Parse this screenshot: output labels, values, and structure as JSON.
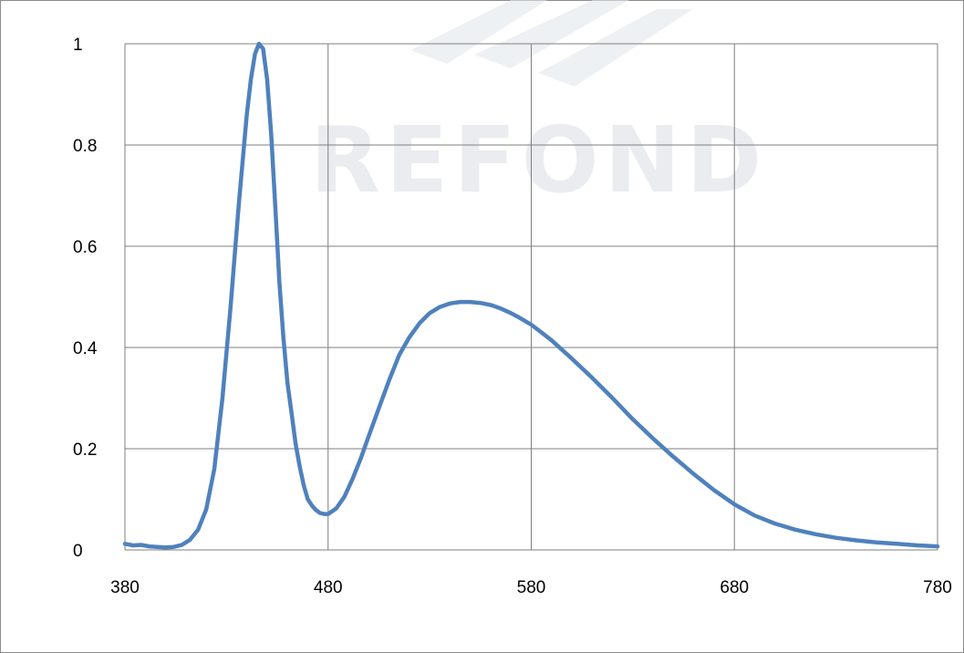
{
  "chart_data": {
    "type": "line",
    "title": "",
    "xlabel": "",
    "ylabel": "",
    "xlim": [
      380,
      780
    ],
    "ylim": [
      0,
      1
    ],
    "x_ticks": [
      "380",
      "480",
      "580",
      "680",
      "780"
    ],
    "y_ticks": [
      "0",
      "0.2",
      "0.4",
      "0.6",
      "0.8",
      "1"
    ],
    "grid": true,
    "legend": "none",
    "series": [
      {
        "color": "#4f81bd",
        "x": [
          380,
          384,
          388,
          392,
          396,
          400,
          404,
          408,
          412,
          416,
          420,
          424,
          428,
          432,
          436,
          440,
          442,
          444,
          446,
          448,
          450,
          452,
          454,
          456,
          458,
          460,
          462,
          464,
          466,
          468,
          470,
          472,
          474,
          476,
          478,
          480,
          484,
          488,
          492,
          496,
          500,
          505,
          510,
          515,
          520,
          525,
          530,
          535,
          540,
          545,
          550,
          555,
          560,
          565,
          570,
          575,
          580,
          585,
          590,
          595,
          600,
          610,
          620,
          630,
          640,
          650,
          660,
          670,
          680,
          690,
          700,
          710,
          720,
          730,
          740,
          750,
          760,
          770,
          780
        ],
        "y": [
          0.012,
          0.009,
          0.01,
          0.007,
          0.006,
          0.005,
          0.006,
          0.01,
          0.02,
          0.04,
          0.08,
          0.16,
          0.3,
          0.48,
          0.68,
          0.86,
          0.93,
          0.98,
          1.0,
          0.99,
          0.93,
          0.82,
          0.68,
          0.53,
          0.42,
          0.33,
          0.27,
          0.21,
          0.165,
          0.128,
          0.1,
          0.088,
          0.079,
          0.073,
          0.071,
          0.071,
          0.082,
          0.105,
          0.14,
          0.18,
          0.225,
          0.28,
          0.335,
          0.385,
          0.42,
          0.448,
          0.468,
          0.48,
          0.487,
          0.49,
          0.49,
          0.488,
          0.484,
          0.477,
          0.468,
          0.457,
          0.445,
          0.43,
          0.414,
          0.396,
          0.378,
          0.34,
          0.3,
          0.258,
          0.22,
          0.184,
          0.15,
          0.118,
          0.09,
          0.068,
          0.052,
          0.04,
          0.031,
          0.024,
          0.019,
          0.015,
          0.012,
          0.009,
          0.007
        ]
      }
    ]
  },
  "watermark": {
    "text": "REFOND"
  }
}
